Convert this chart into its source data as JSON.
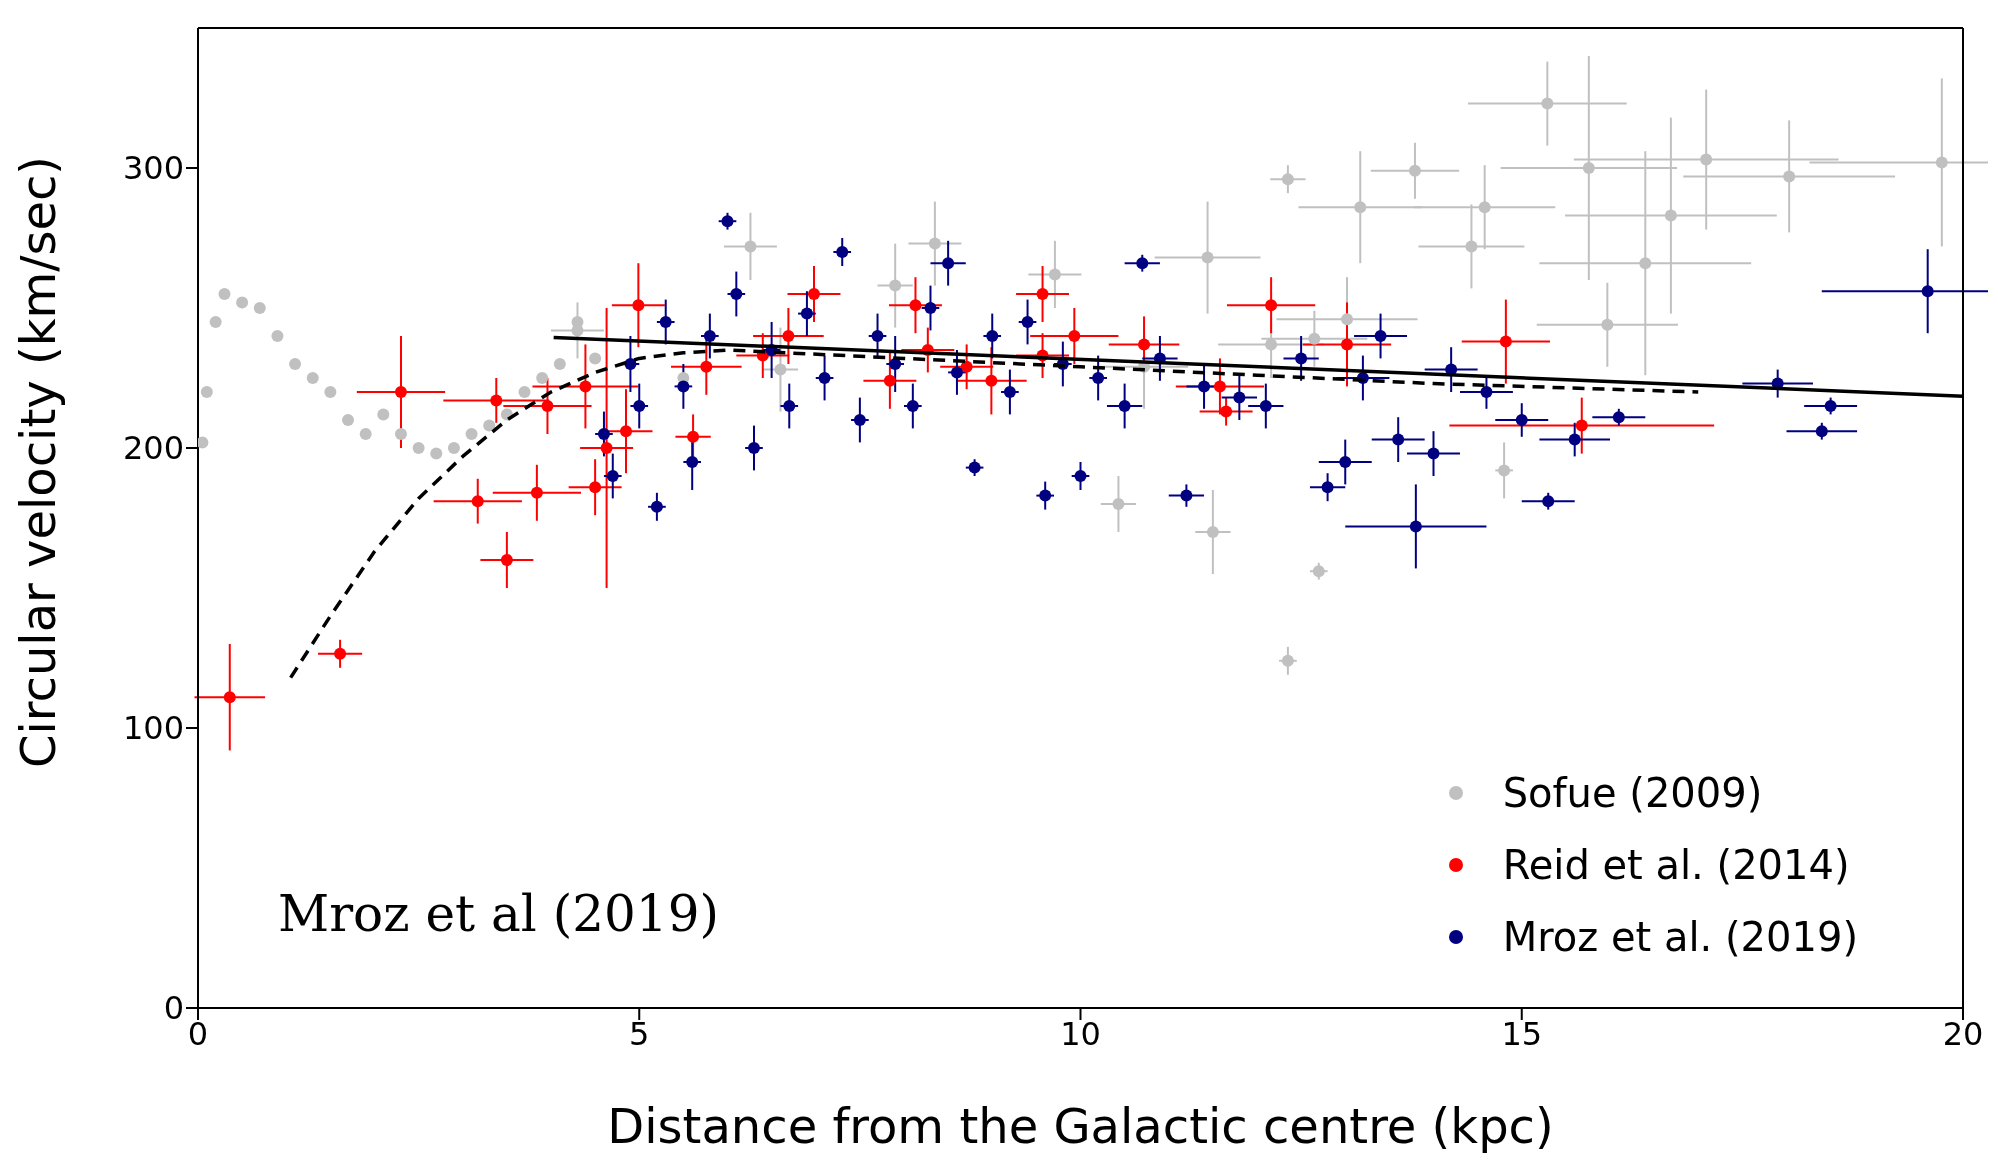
{
  "chart_data": {
    "type": "scatter",
    "xlabel": "Distance from the Galactic centre (kpc)",
    "ylabel": "Circular velocity (km/sec)",
    "xlim": [
      0,
      20
    ],
    "xticks": [
      0,
      5,
      10,
      15,
      20
    ],
    "ylim": [
      0,
      350
    ],
    "yticks": [
      0,
      100,
      200,
      300
    ],
    "legend": "bottom right",
    "marker": "circle",
    "annotations": [
      "Mroz et al (2019)"
    ],
    "series": [
      {
        "name": "Sofue (2009)",
        "color": "#c0c0c0",
        "x": [
          0.05,
          0.1,
          0.2,
          0.3,
          0.5,
          0.7,
          0.9,
          1.1,
          1.3,
          1.5,
          1.7,
          1.9,
          2.1,
          2.3,
          2.5,
          2.7,
          2.9,
          3.1,
          3.3,
          3.5,
          3.7,
          3.9,
          4.1,
          4.3,
          4.5,
          5.5,
          4.3,
          6.6,
          7.9,
          6.26,
          8.35,
          9.71,
          10.72,
          10.43,
          11.44,
          11.5,
          12.16,
          12.35,
          12.35,
          12.65,
          12.7,
          13.02,
          13.17,
          13.79,
          14.43,
          14.58,
          14.8,
          15.29,
          15.76,
          15.97,
          16.4,
          16.69,
          17.09,
          18.03,
          19.76
        ],
        "values": [
          202,
          220,
          245,
          255,
          252,
          250,
          240,
          230,
          225,
          220,
          210,
          205,
          212,
          205,
          200,
          198,
          200,
          205,
          208,
          212,
          220,
          225,
          230,
          245,
          232,
          225,
          242,
          228,
          258,
          272,
          273,
          262,
          229,
          180,
          268,
          170,
          237,
          296,
          124,
          239,
          156,
          246,
          286,
          299,
          272,
          286,
          192,
          323,
          300,
          244,
          266,
          283,
          303,
          297,
          302
        ],
        "errors": [
          null,
          null,
          null,
          null,
          null,
          null,
          null,
          null,
          null,
          null,
          null,
          null,
          null,
          null,
          null,
          null,
          null,
          null,
          null,
          null,
          null,
          null,
          null,
          null,
          null,
          null,
          10,
          15,
          15,
          12,
          15,
          12,
          15,
          10,
          20,
          15,
          12,
          5,
          5,
          10,
          3,
          15,
          20,
          10,
          15,
          15,
          10,
          15,
          40,
          15,
          40,
          35,
          25,
          20,
          30
        ],
        "xerrors": [
          null,
          null,
          null,
          null,
          null,
          null,
          null,
          null,
          null,
          null,
          null,
          null,
          null,
          null,
          null,
          null,
          null,
          null,
          null,
          null,
          null,
          null,
          null,
          null,
          null,
          null,
          0.3,
          0.2,
          0.2,
          0.3,
          0.3,
          0.3,
          0.5,
          0.2,
          0.6,
          0.2,
          0.6,
          0.2,
          0.1,
          0.6,
          0.1,
          0.8,
          0.7,
          0.5,
          0.6,
          0.8,
          0.1,
          0.9,
          1.0,
          0.8,
          1.2,
          1.2,
          1.5,
          1.2,
          1.5
        ]
      },
      {
        "name": "Reid et al.  (2014)",
        "color": "#ff0000",
        "x": [
          0.36,
          1.61,
          2.3,
          3.17,
          3.5,
          3.84,
          3.38,
          3.96,
          4.5,
          4.39,
          4.63,
          4.85,
          4.99,
          5.61,
          5.76,
          6.4,
          6.69,
          6.98,
          7.84,
          8.13,
          8.27,
          8.71,
          8.99,
          9.57,
          9.57,
          9.93,
          10.72,
          11.58,
          11.65,
          12.16,
          13.02,
          14.82,
          15.68
        ],
        "values": [
          111,
          126.5,
          220,
          181,
          160,
          184,
          217,
          215,
          186,
          222,
          200,
          206,
          251,
          204,
          229,
          233,
          240,
          255,
          224,
          251,
          235,
          229,
          224,
          233,
          255,
          240,
          237,
          222,
          213,
          251,
          237,
          238,
          208
        ],
        "errors": [
          19,
          5,
          20,
          8,
          10,
          10,
          8,
          10,
          10,
          15,
          50,
          15,
          15,
          8,
          10,
          8,
          10,
          10,
          10,
          10,
          8,
          8,
          12,
          8,
          10,
          10,
          10,
          10,
          5,
          10,
          15,
          15,
          10
        ],
        "xerrors": [
          0.4,
          0.25,
          0.5,
          0.5,
          0.3,
          0.5,
          0.6,
          0.5,
          0.3,
          0.6,
          0.3,
          0.3,
          0.3,
          0.2,
          0.4,
          0.3,
          0.4,
          0.3,
          0.3,
          0.3,
          0.3,
          0.3,
          0.4,
          0.3,
          0.3,
          0.5,
          0.4,
          0.5,
          0.3,
          0.5,
          0.5,
          0.5,
          1.5
        ]
      },
      {
        "name": "Mroz et al.  (2019)",
        "color": "#000080",
        "x": [
          4.6,
          4.7,
          4.9,
          5.0,
          5.2,
          5.3,
          5.5,
          5.6,
          5.8,
          6.0,
          6.1,
          6.3,
          6.5,
          6.7,
          6.9,
          7.1,
          7.3,
          7.5,
          7.7,
          7.9,
          8.1,
          8.3,
          8.5,
          8.6,
          8.8,
          9.0,
          9.2,
          9.4,
          9.6,
          9.8,
          10.0,
          10.2,
          10.5,
          10.7,
          10.9,
          11.2,
          11.4,
          11.8,
          12.1,
          12.5,
          12.8,
          13.0,
          13.2,
          13.4,
          13.6,
          13.8,
          14.0,
          14.2,
          14.6,
          15.0,
          15.3,
          15.6,
          16.1,
          17.9,
          18.4,
          18.5,
          19.6
        ],
        "values": [
          205,
          190,
          230,
          215,
          179,
          245,
          222,
          195,
          240,
          281,
          255,
          200,
          235,
          215,
          248,
          225,
          270,
          210,
          240,
          230,
          215,
          250,
          266,
          227,
          193,
          240,
          220,
          245,
          183,
          230,
          190,
          225,
          215,
          266,
          232,
          183,
          222,
          218,
          215,
          232,
          186,
          195,
          225,
          240,
          203,
          172,
          198,
          228,
          220,
          210,
          181,
          203,
          211,
          223,
          206,
          215,
          256
        ],
        "errors": [
          8,
          8,
          10,
          8,
          5,
          8,
          8,
          10,
          8,
          3,
          8,
          8,
          10,
          8,
          8,
          8,
          5,
          8,
          8,
          10,
          8,
          8,
          8,
          8,
          3,
          8,
          8,
          8,
          5,
          8,
          5,
          8,
          8,
          3,
          8,
          4,
          8,
          8,
          8,
          8,
          5,
          8,
          8,
          8,
          8,
          15,
          8,
          8,
          6,
          6,
          3,
          6,
          3,
          5,
          3,
          3,
          15
        ],
        "xerrors": [
          0.1,
          0.1,
          0.1,
          0.1,
          0.1,
          0.1,
          0.1,
          0.1,
          0.1,
          0.1,
          0.1,
          0.1,
          0.1,
          0.1,
          0.1,
          0.1,
          0.1,
          0.1,
          0.1,
          0.1,
          0.1,
          0.1,
          0.2,
          0.1,
          0.1,
          0.1,
          0.1,
          0.1,
          0.1,
          0.1,
          0.1,
          0.1,
          0.2,
          0.2,
          0.2,
          0.2,
          0.2,
          0.2,
          0.2,
          0.2,
          0.2,
          0.3,
          0.3,
          0.3,
          0.3,
          0.8,
          0.3,
          0.3,
          0.3,
          0.3,
          0.3,
          0.4,
          0.3,
          0.4,
          0.4,
          0.3,
          1.2
        ]
      },
      {
        "type": "line",
        "color": "#000000",
        "line_style": "dashed",
        "marker": "none",
        "x": [
          1.05,
          1.5,
          2,
          2.5,
          3,
          3.5,
          4,
          4.5,
          5,
          5.5,
          6,
          8,
          10,
          12,
          14,
          16,
          17
        ],
        "values": [
          118,
          140,
          163,
          182,
          197,
          210,
          220,
          227,
          232,
          234,
          235,
          232,
          229,
          226,
          223,
          221,
          220
        ]
      },
      {
        "type": "line",
        "color": "#000000",
        "line_style": "solid",
        "marker": "none",
        "x": [
          4.03,
          20
        ],
        "values": [
          239.5,
          218.5
        ]
      }
    ]
  }
}
